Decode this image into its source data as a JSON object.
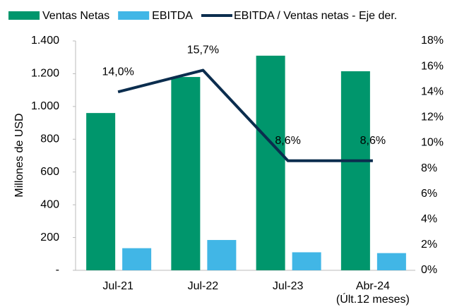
{
  "chart_data": {
    "type": "bar_line",
    "categories": [
      "Jul-21",
      "Jul-22",
      "Jul-23",
      "Abr-24\n(Últ.12 meses)"
    ],
    "series": [
      {
        "name": "Ventas Netas",
        "color": "#00966c",
        "type": "bar",
        "values": [
          960,
          1180,
          1310,
          1215
        ]
      },
      {
        "name": "EBITDA",
        "color": "#41b6e6",
        "type": "bar",
        "values": [
          135,
          185,
          110,
          105
        ]
      },
      {
        "name": "EBITDA / Ventas netas - Eje der.",
        "color": "#0b2d4e",
        "type": "line",
        "axis": "y2",
        "values": [
          14.0,
          15.7,
          8.6,
          8.6
        ],
        "value_labels": [
          "14,0%",
          "15,7%",
          "8,6%",
          "8,6%"
        ]
      }
    ],
    "ylabel": "Millones de USD",
    "ylim": [
      0,
      1400
    ],
    "yticks": [
      {
        "value": 0,
        "label": "-"
      },
      200,
      400,
      600,
      800,
      {
        "value": 1000,
        "label": "1.000"
      },
      {
        "value": 1200,
        "label": "1.200"
      },
      {
        "value": 1400,
        "label": "1.400"
      }
    ],
    "y2lim": [
      0,
      18
    ],
    "y2ticks": [
      {
        "value": 0,
        "label": "0%"
      },
      {
        "value": 2,
        "label": "2%"
      },
      {
        "value": 4,
        "label": "4%"
      },
      {
        "value": 6,
        "label": "6%"
      },
      {
        "value": 8,
        "label": "8%"
      },
      {
        "value": 10,
        "label": "10%"
      },
      {
        "value": 12,
        "label": "12%"
      },
      {
        "value": 14,
        "label": "14%"
      },
      {
        "value": 16,
        "label": "16%"
      },
      {
        "value": 18,
        "label": "18%"
      }
    ],
    "legend": "top"
  }
}
